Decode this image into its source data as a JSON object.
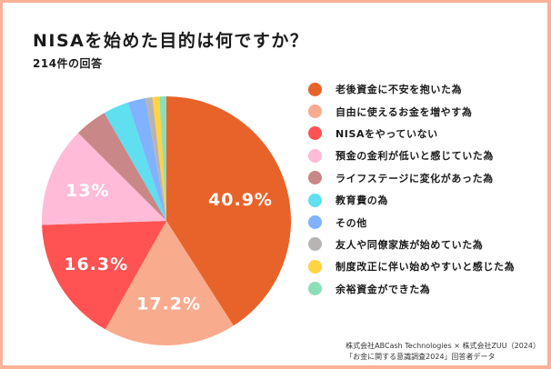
{
  "chart_data": {
    "type": "pie",
    "title": "NISAを始めた目的は何ですか？",
    "subtitle": "214件の回答",
    "start_angle": "12 o'clock",
    "direction": "clockwise",
    "legend_position": "right",
    "categories": [
      "老後資金に不安を抱いた為",
      "自由に使えるお金を増やす為",
      "NISAをやっていない",
      "預金の金利が低いと感じていた為",
      "ライフステージに変化があった為",
      "教育費の為",
      "その他",
      "友人や同僚家族が始めていた為",
      "制度改正に伴い始めやすいと感じた為",
      "余裕資金ができた為"
    ],
    "values": [
      40.9,
      17.2,
      16.3,
      13.0,
      4.2,
      3.3,
      2.3,
      0.9,
      0.9,
      0.9
    ],
    "colors": [
      "#e8632a",
      "#f9ab8e",
      "#ff5252",
      "#ffbbd7",
      "#c98787",
      "#5fdff0",
      "#80b2ff",
      "#b8b4b4",
      "#ffd342",
      "#8adfb8"
    ],
    "data_labels": [
      "40.9%",
      "17.2%",
      "16.3%",
      "13%",
      "",
      "",
      "",
      "",
      "",
      ""
    ]
  },
  "source": {
    "line1": "株式会社ABCash Technologies × 株式会社ZUU（2024）",
    "line2": "「お金に関する意識調査2024」回答者データ"
  }
}
